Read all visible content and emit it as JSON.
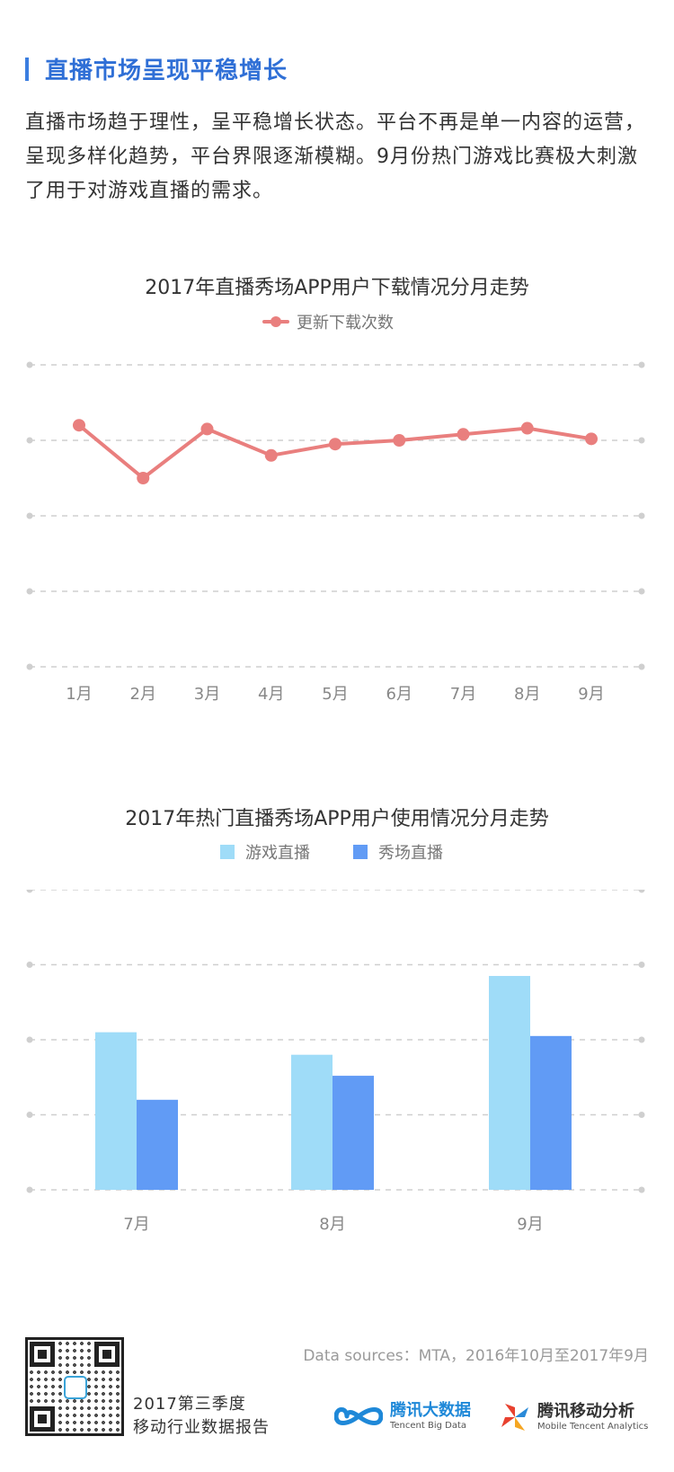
{
  "section": {
    "title": "直播市场呈现平稳增长",
    "intro": "直播市场趋于理性，呈平稳增长状态。平台不再是单一内容的运营，呈现多样化趋势，平台界限逐渐模糊。9月份热门游戏比赛极大刺激了用于对游戏直播的需求。"
  },
  "chart_data": [
    {
      "type": "line",
      "title": "2017年直播秀场APP用户下载情况分月走势",
      "categories": [
        "1月",
        "2月",
        "3月",
        "4月",
        "5月",
        "6月",
        "7月",
        "8月",
        "9月"
      ],
      "series": [
        {
          "name": "更新下载次数",
          "values": [
            3.2,
            2.5,
            3.15,
            2.8,
            2.95,
            3.0,
            3.08,
            3.16,
            3.02
          ],
          "color": "#e97f7e"
        }
      ],
      "ylim": [
        0,
        4
      ],
      "ticks": [
        0,
        1,
        2,
        3,
        4
      ],
      "grid": true,
      "legend": "top-center"
    },
    {
      "type": "bar",
      "title": "2017年热门直播秀场APP用户使用情况分月走势",
      "categories": [
        "7月",
        "8月",
        "9月"
      ],
      "series": [
        {
          "name": "游戏直播",
          "values": [
            2.1,
            1.8,
            2.85
          ],
          "color": "#9fdcf8"
        },
        {
          "name": "秀场直播",
          "values": [
            1.2,
            1.52,
            2.05
          ],
          "color": "#619bf5"
        }
      ],
      "ylim": [
        0,
        4
      ],
      "ticks": [
        0,
        1,
        2,
        3,
        4
      ],
      "grid": true,
      "legend": "top-center"
    }
  ],
  "footer": {
    "source": "Data sources：MTA，2016年10月至2017年9月",
    "report_line1": "2017第三季度",
    "report_line2": "移动行业数据报告",
    "brand1_cn": "腾讯大数据",
    "brand1_en": "Tencent Big Data",
    "brand2_cn": "腾讯移动分析",
    "brand2_en": "Mobile Tencent Analytics",
    "brand1_color": "#1e88d8",
    "brand2_colors": [
      "#e8412f",
      "#2a8ad8",
      "#f5a623"
    ]
  }
}
